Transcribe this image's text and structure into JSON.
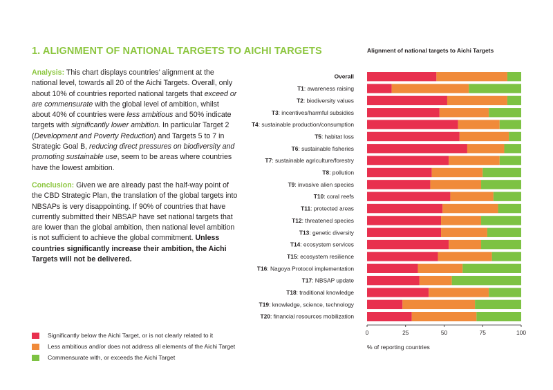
{
  "heading": "1. ALIGNMENT OF NATIONAL TARGETS TO AICHI TARGETS",
  "analysis": {
    "lead": "Analysis:",
    "t1": " This chart displays countries’ alignment at the national level, towards all 20 of the Aichi Targets. Overall, only about 10% of countries reported national targets that ",
    "i1": "exceed or are commensurate",
    "t2": " with the global level of ambition, whilst about 40% of countries were ",
    "i2": "less ambitious",
    "t3": " and 50% indicate targets with ",
    "i3": "significantly lower ambition.",
    "t4": " In particular Target 2 (",
    "i4": "Development and Poverty Reduction",
    "t5": ") and Targets 5 to 7 in Strategic Goal B, ",
    "i5": "reducing direct pressures on biodiversity and promoting sustainable use",
    "t6": ", seem to be areas where countries have the lowest ambition."
  },
  "conclusion": {
    "lead": "Conclusion:",
    "t1": " Given we are already past the half-way point of the CBD Strategic Plan, the translation of the global targets into NBSAPs is very disappointing. If 90% of countries that have currently submitted their NBSAP have set national targets that are lower than the global ambition, then national level ambition is not sufficient to achieve the global commitment. ",
    "b1": "Unless countries significantly increase their ambition, the Aichi Targets will not be delivered."
  },
  "colors": {
    "accent": "#8cc63f",
    "red": "#e8304e",
    "orange": "#f08a3a",
    "green": "#7dc243"
  },
  "legend": [
    {
      "label": "Significantly below the Aichi Target, or is not clearly related to it",
      "color": "#e8304e"
    },
    {
      "label": "Less ambitious and/or does not address all elements of the Aichi Target",
      "color": "#f08a3a"
    },
    {
      "label": "Commensurate with, or exceeds the Aichi Target",
      "color": "#7dc243"
    }
  ],
  "chart_data": {
    "type": "bar",
    "orientation": "horizontal",
    "stacked": true,
    "title": "Alignment of national targets to Aichi Targets",
    "xlabel": "% of reporting countries",
    "xlim": [
      0,
      100
    ],
    "xticks": [
      "0",
      "25",
      "50",
      "75",
      "100"
    ],
    "categories": [
      {
        "bold": "Overall",
        "rest": ""
      },
      {
        "bold": "T1",
        "rest": ": awareness raising"
      },
      {
        "bold": "T2",
        "rest": ": biodiversity values"
      },
      {
        "bold": "T3",
        "rest": ": incentives/harmful subsidies"
      },
      {
        "bold": "T4",
        "rest": ": sustainable production/consumption"
      },
      {
        "bold": "T5",
        "rest": ": habitat loss"
      },
      {
        "bold": "T6",
        "rest": ": sustainable fisheries"
      },
      {
        "bold": "T7",
        "rest": ": sustainable agriculture/forestry"
      },
      {
        "bold": "T8",
        "rest": ": pollution"
      },
      {
        "bold": "T9",
        "rest": ": invasive alien species"
      },
      {
        "bold": "T10",
        "rest": ": coral reefs"
      },
      {
        "bold": "T11",
        "rest": ": protected areas"
      },
      {
        "bold": "T12",
        "rest": ": threatened species"
      },
      {
        "bold": "T13",
        "rest": ": genetic diversity"
      },
      {
        "bold": "T14",
        "rest": ": ecosystem services"
      },
      {
        "bold": "T15",
        "rest": ": ecosystem resilience"
      },
      {
        "bold": "T16",
        "rest": ": Nagoya Protocol implementation"
      },
      {
        "bold": "T17",
        "rest": ": NBSAP update"
      },
      {
        "bold": "T18",
        "rest": ": traditional knowledge"
      },
      {
        "bold": "T19",
        "rest": ": knowledge, science, technology"
      },
      {
        "bold": "T20",
        "rest": ": financial resources mobilization"
      }
    ],
    "series": [
      {
        "name": "Significantly below the Aichi Target, or is not clearly related to it",
        "color": "#e8304e",
        "values": [
          45,
          16,
          52,
          47,
          59,
          60,
          65,
          53,
          42,
          41,
          54,
          49,
          48,
          48,
          53,
          46,
          33,
          34,
          40,
          23,
          29
        ]
      },
      {
        "name": "Less ambitious and/or does not address all elements of the Aichi Target",
        "color": "#f08a3a",
        "values": [
          46,
          50,
          39,
          32,
          27,
          32,
          24,
          33,
          33,
          33,
          28,
          36,
          26,
          30,
          21,
          35,
          29,
          21,
          39,
          47,
          42
        ]
      },
      {
        "name": "Commensurate with, or exceeds the Aichi Target",
        "color": "#7dc243",
        "values": [
          9,
          34,
          9,
          21,
          14,
          8,
          11,
          14,
          25,
          26,
          18,
          15,
          26,
          22,
          26,
          19,
          38,
          45,
          21,
          30,
          29
        ]
      }
    ]
  }
}
